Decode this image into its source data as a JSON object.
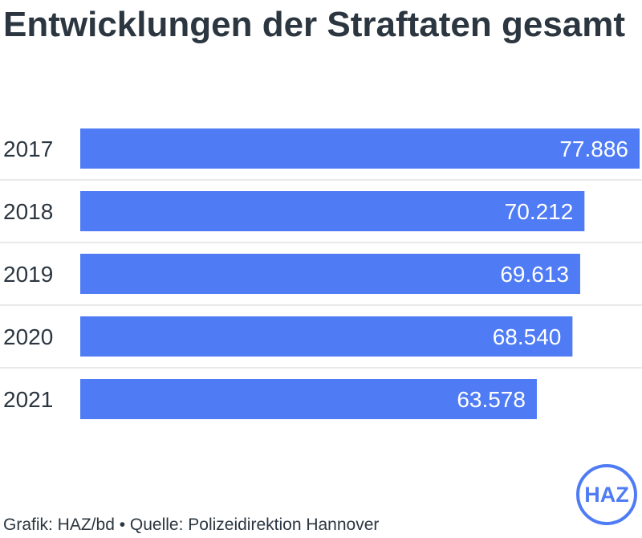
{
  "chart_data": {
    "type": "bar",
    "orientation": "horizontal",
    "title": "Entwicklungen der Straftaten gesamt",
    "categories": [
      "2017",
      "2018",
      "2019",
      "2020",
      "2021"
    ],
    "values": [
      77886,
      70212,
      69613,
      68540,
      63578
    ],
    "value_labels": [
      "77.886",
      "70.212",
      "69.613",
      "68.540",
      "63.578"
    ],
    "xlim": [
      0,
      77886
    ],
    "bar_color": "#4f7cf5",
    "grid": false
  },
  "footer": {
    "source": "Grafik: HAZ/bd • Quelle: Polizeidirektion Hannover",
    "logo_text": "HAZ"
  }
}
